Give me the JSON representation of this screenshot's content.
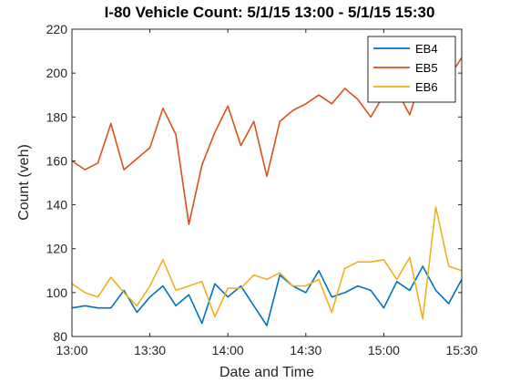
{
  "chart_data": {
    "type": "line",
    "title": "I-80 Vehicle Count:  5/1/15 13:00 - 5/1/15 15:30",
    "xlabel": "Date and Time",
    "ylabel": "Count (veh)",
    "x": [
      "13:00",
      "13:05",
      "13:10",
      "13:15",
      "13:20",
      "13:25",
      "13:30",
      "13:35",
      "13:40",
      "13:45",
      "13:50",
      "13:55",
      "14:00",
      "14:05",
      "14:10",
      "14:15",
      "14:20",
      "14:25",
      "14:30",
      "14:35",
      "14:40",
      "14:45",
      "14:50",
      "14:55",
      "15:00",
      "15:05",
      "15:10",
      "15:15",
      "15:20",
      "15:25",
      "15:30"
    ],
    "xticks": [
      "13:00",
      "13:30",
      "14:00",
      "14:30",
      "15:00",
      "15:30"
    ],
    "ylim": [
      80,
      220
    ],
    "yticks": [
      80,
      100,
      120,
      140,
      160,
      180,
      200,
      220
    ],
    "grid": false,
    "legend_position": "top-right",
    "series": [
      {
        "name": "EB4",
        "color": "#0072BD",
        "values": [
          93,
          94,
          93,
          93,
          101,
          91,
          98,
          103,
          94,
          99,
          86,
          104,
          98,
          103,
          94,
          85,
          108,
          103,
          100,
          110,
          98,
          100,
          103,
          101,
          93,
          105,
          101,
          112,
          101,
          95,
          106
        ]
      },
      {
        "name": "EB5",
        "color": "#D95319",
        "values": [
          160,
          156,
          159,
          177,
          156,
          161,
          166,
          184,
          172,
          131,
          158,
          173,
          185,
          167,
          178,
          153,
          178,
          183,
          186,
          190,
          186,
          193,
          188,
          180,
          190,
          192,
          181,
          200,
          190,
          198,
          207
        ]
      },
      {
        "name": "EB6",
        "color": "#EDB120",
        "values": [
          104,
          100,
          98,
          107,
          100,
          94,
          103,
          115,
          101,
          103,
          105,
          89,
          102,
          102,
          108,
          106,
          109,
          103,
          103,
          106,
          91,
          111,
          114,
          114,
          115,
          106,
          116,
          88,
          139,
          112,
          110
        ]
      }
    ]
  }
}
